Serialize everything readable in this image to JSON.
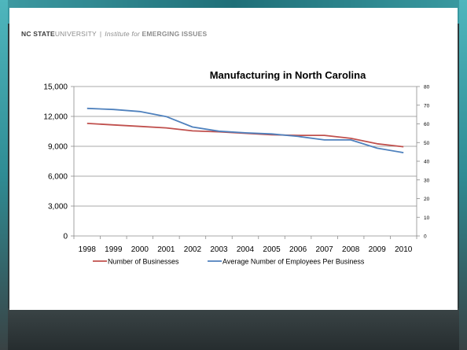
{
  "slide": {
    "header": {
      "brand_bold": "NC STATE",
      "brand_light": "UNIVERSITY",
      "separator": "|",
      "institute_italic": "Institute for",
      "institute_bold": "EMERGING ISSUES"
    }
  },
  "chart_data": {
    "type": "line",
    "title": "Manufacturing in North Carolina",
    "xlabel": "",
    "ylabel": "",
    "categories": [
      "1998",
      "1999",
      "2000",
      "2001",
      "2002",
      "2003",
      "2004",
      "2005",
      "2006",
      "2007",
      "2008",
      "2009",
      "2010"
    ],
    "y_left": {
      "ylim": [
        0,
        15000
      ],
      "ticks": [
        "0",
        "3,000",
        "6,000",
        "9,000",
        "12,000",
        "15,000"
      ]
    },
    "y_right": {
      "ylim": [
        0,
        80
      ],
      "ticks": [
        "0",
        "10",
        "20",
        "30",
        "40",
        "50",
        "60",
        "70",
        "80"
      ]
    },
    "grid": "horizontal",
    "legend_position": "bottom",
    "series": [
      {
        "name": "Number of  Businesses",
        "axis": "left",
        "color": "#c0504d",
        "values": [
          11300,
          11150,
          11000,
          10850,
          10550,
          10450,
          10300,
          10150,
          10100,
          10100,
          9800,
          9250,
          8950
        ]
      },
      {
        "name": "Average Number of Employees Per Business",
        "axis": "right",
        "color": "#4f81bd",
        "values": [
          68.3,
          67.7,
          66.6,
          63.9,
          58.3,
          56.1,
          55.2,
          54.6,
          53.3,
          51.4,
          51.4,
          47.0,
          44.6
        ]
      }
    ]
  }
}
